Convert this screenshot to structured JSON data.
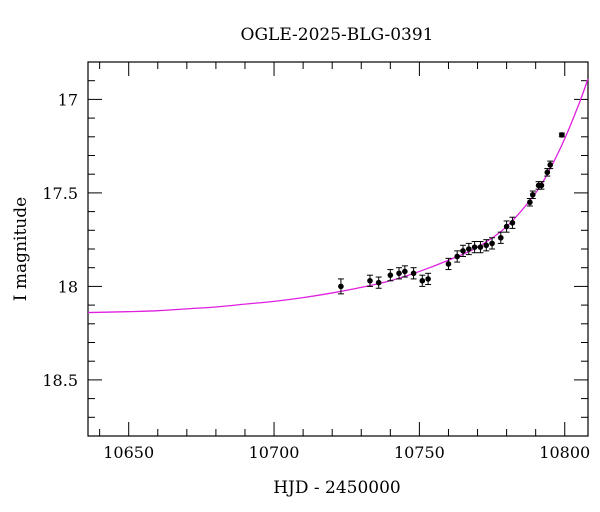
{
  "chart_data": {
    "type": "scatter",
    "title": "OGLE-2025-BLG-0391",
    "xlabel": "HJD - 2450000",
    "ylabel": "I magnitude",
    "xlim": [
      10636,
      10808
    ],
    "ylim": [
      18.8,
      16.8
    ],
    "y_inverted": true,
    "grid": false,
    "x_ticks": [
      10650,
      10700,
      10750,
      10800
    ],
    "x_tick_labels": [
      "10650",
      "10700",
      "10750",
      "10800"
    ],
    "y_ticks": [
      17,
      17.5,
      18,
      18.5
    ],
    "y_tick_labels": [
      "17",
      "17.5",
      "18",
      "18.5"
    ],
    "series": [
      {
        "type": "scatter",
        "color": "#000000",
        "points": [
          {
            "x": 10723,
            "y": 18.0,
            "err": 0.04
          },
          {
            "x": 10733,
            "y": 17.97,
            "err": 0.03
          },
          {
            "x": 10736,
            "y": 17.98,
            "err": 0.03
          },
          {
            "x": 10740,
            "y": 17.94,
            "err": 0.03
          },
          {
            "x": 10743,
            "y": 17.93,
            "err": 0.03
          },
          {
            "x": 10745,
            "y": 17.92,
            "err": 0.03
          },
          {
            "x": 10748,
            "y": 17.93,
            "err": 0.03
          },
          {
            "x": 10751,
            "y": 17.97,
            "err": 0.03
          },
          {
            "x": 10753,
            "y": 17.96,
            "err": 0.03
          },
          {
            "x": 10760,
            "y": 17.88,
            "err": 0.03
          },
          {
            "x": 10763,
            "y": 17.84,
            "err": 0.03
          },
          {
            "x": 10765,
            "y": 17.81,
            "err": 0.03
          },
          {
            "x": 10767,
            "y": 17.8,
            "err": 0.03
          },
          {
            "x": 10769,
            "y": 17.79,
            "err": 0.03
          },
          {
            "x": 10771,
            "y": 17.79,
            "err": 0.03
          },
          {
            "x": 10773,
            "y": 17.78,
            "err": 0.03
          },
          {
            "x": 10775,
            "y": 17.77,
            "err": 0.03
          },
          {
            "x": 10778,
            "y": 17.74,
            "err": 0.03
          },
          {
            "x": 10780,
            "y": 17.68,
            "err": 0.03
          },
          {
            "x": 10782,
            "y": 17.66,
            "err": 0.03
          },
          {
            "x": 10788,
            "y": 17.55,
            "err": 0.02
          },
          {
            "x": 10789,
            "y": 17.51,
            "err": 0.02
          },
          {
            "x": 10791,
            "y": 17.46,
            "err": 0.02
          },
          {
            "x": 10792,
            "y": 17.46,
            "err": 0.02
          },
          {
            "x": 10794,
            "y": 17.39,
            "err": 0.02
          },
          {
            "x": 10795,
            "y": 17.35,
            "err": 0.02
          },
          {
            "x": 10799,
            "y": 17.19,
            "err": 0.01
          }
        ]
      },
      {
        "type": "line",
        "color": "#e020e0",
        "points": [
          {
            "x": 10636,
            "y": 18.14
          },
          {
            "x": 10650,
            "y": 18.135
          },
          {
            "x": 10660,
            "y": 18.13
          },
          {
            "x": 10670,
            "y": 18.12
          },
          {
            "x": 10680,
            "y": 18.11
          },
          {
            "x": 10690,
            "y": 18.095
          },
          {
            "x": 10700,
            "y": 18.08
          },
          {
            "x": 10710,
            "y": 18.06
          },
          {
            "x": 10720,
            "y": 18.035
          },
          {
            "x": 10730,
            "y": 18.005
          },
          {
            "x": 10740,
            "y": 17.97
          },
          {
            "x": 10750,
            "y": 17.92
          },
          {
            "x": 10760,
            "y": 17.86
          },
          {
            "x": 10770,
            "y": 17.79
          },
          {
            "x": 10780,
            "y": 17.68
          },
          {
            "x": 10790,
            "y": 17.5
          },
          {
            "x": 10795,
            "y": 17.37
          },
          {
            "x": 10800,
            "y": 17.21
          },
          {
            "x": 10805,
            "y": 17.02
          },
          {
            "x": 10808,
            "y": 16.89
          }
        ]
      }
    ]
  }
}
